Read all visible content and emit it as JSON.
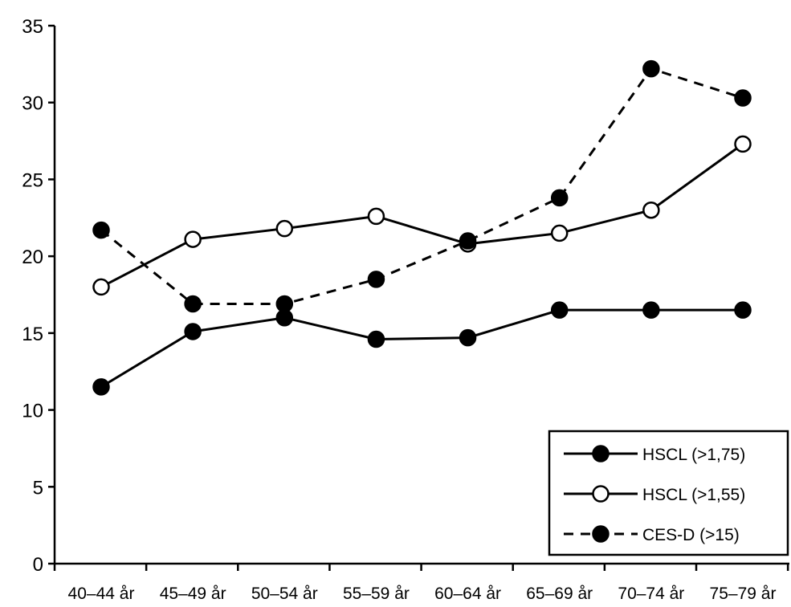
{
  "chart_data": {
    "type": "line",
    "categories": [
      "40–44 år",
      "45–49 år",
      "50–54 år",
      "55–59 år",
      "60–64 år",
      "65–69 år",
      "70–74 år",
      "75–79 år"
    ],
    "ylim": [
      0,
      35
    ],
    "yticks": [
      0,
      5,
      10,
      15,
      20,
      25,
      30,
      35
    ],
    "grid": false,
    "legend": "bottom-right",
    "series": [
      {
        "name": "HSCL (>1,75)",
        "values": [
          11.5,
          15.1,
          16.0,
          14.6,
          14.7,
          16.5,
          16.5,
          16.5
        ],
        "line": "solid",
        "marker": "filled"
      },
      {
        "name": "HSCL (>1,55)",
        "values": [
          18.0,
          21.1,
          21.8,
          22.6,
          20.8,
          21.5,
          23.0,
          27.3
        ],
        "line": "solid",
        "marker": "open"
      },
      {
        "name": "CES-D (>15)",
        "values": [
          21.7,
          16.9,
          16.9,
          18.5,
          21.0,
          23.8,
          32.2,
          30.3
        ],
        "line": "dashed",
        "marker": "filled"
      }
    ]
  }
}
